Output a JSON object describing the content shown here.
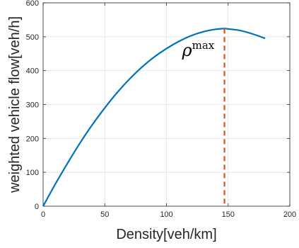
{
  "chart_data": {
    "type": "line",
    "xlabel": "Density[veh/km]",
    "ylabel": "weighted vehicle flow[veh/h]",
    "xlim": [
      0,
      200
    ],
    "ylim": [
      0,
      600
    ],
    "xticks": [
      0,
      50,
      100,
      150,
      200
    ],
    "yticks": [
      0,
      100,
      200,
      300,
      400,
      500,
      600
    ],
    "x_tick_labels": [
      "0",
      "50",
      "100",
      "150",
      "200"
    ],
    "y_tick_labels": [
      "0",
      "100",
      "200",
      "300",
      "400",
      "500",
      "600"
    ],
    "grid": true,
    "series": [
      {
        "color": "#0072BD",
        "x": [
          0,
          10,
          20,
          30,
          40,
          50,
          60,
          70,
          80,
          90,
          100,
          110,
          120,
          130,
          140,
          147,
          150,
          160,
          170,
          180
        ],
        "y": [
          0,
          66,
          128,
          187,
          241,
          290,
          335,
          375,
          410,
          440,
          465,
          486,
          503,
          515,
          522,
          524,
          523,
          518,
          508,
          495
        ]
      }
    ],
    "vline": {
      "x": 147,
      "color": "#D95319",
      "style": "dashed"
    },
    "annotation": {
      "base": "ρ",
      "sup": "max",
      "x": 147,
      "y": 470
    }
  }
}
